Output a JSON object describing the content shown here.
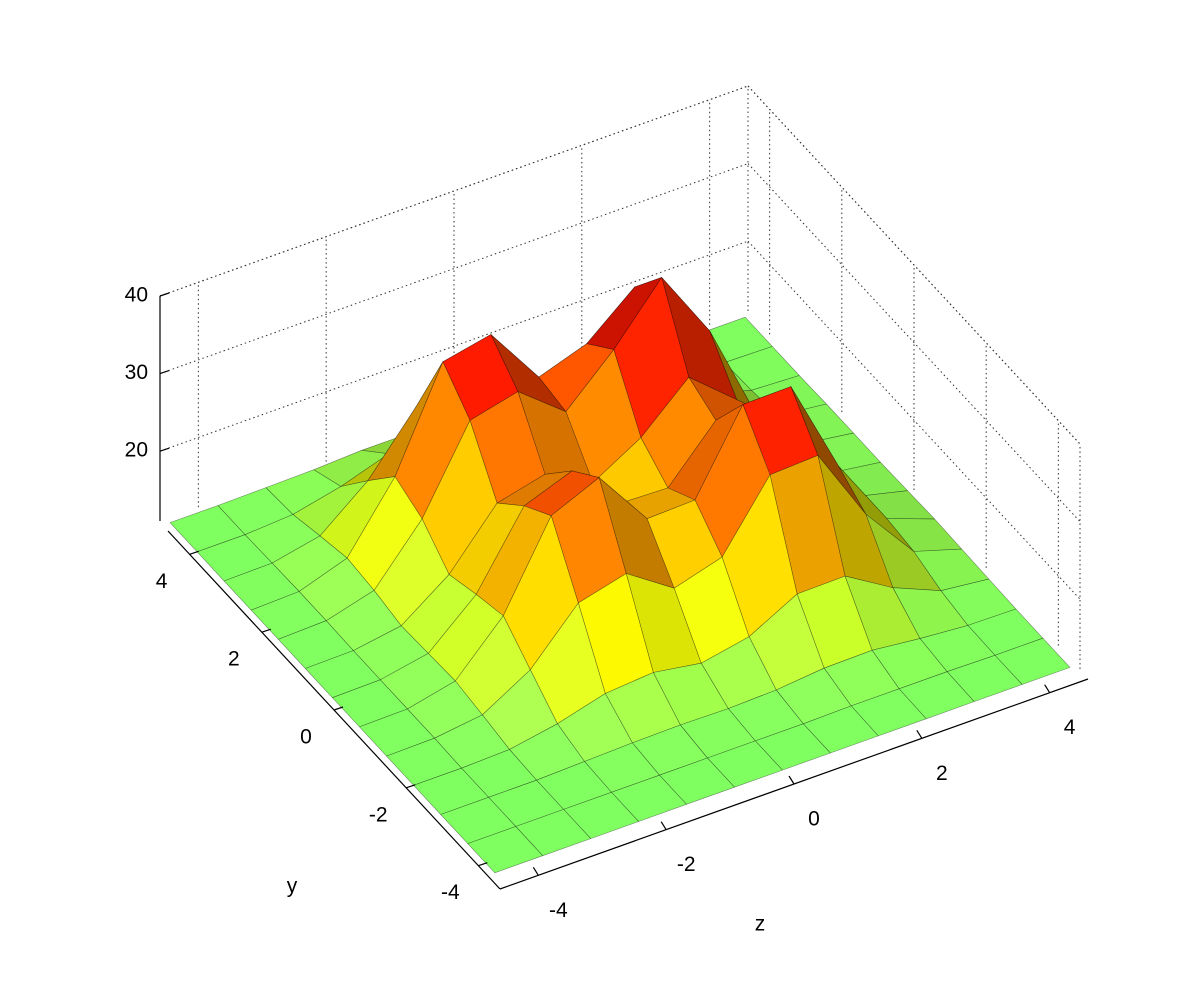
{
  "chart_data": {
    "type": "surface",
    "xlabel": "z",
    "ylabel": "y",
    "x": [
      -4.5,
      -3.75,
      -3,
      -2.25,
      -1.5,
      -0.75,
      0,
      0.75,
      1.5,
      2.25,
      3,
      3.75,
      4.5
    ],
    "y": [
      -4.5,
      -3.75,
      -3,
      -2.25,
      -1.5,
      -0.75,
      0,
      0.75,
      1.5,
      2.25,
      3,
      3.75,
      4.5
    ],
    "z": [
      [
        11,
        11,
        11,
        11,
        11,
        11,
        11,
        11,
        11,
        11,
        11,
        11,
        11
      ],
      [
        11,
        11,
        11,
        11,
        11,
        11,
        11,
        11,
        11.1,
        11.1,
        11.1,
        11,
        11
      ],
      [
        11,
        11,
        11,
        11.2,
        11.4,
        11.5,
        11.4,
        11.6,
        12.2,
        12.3,
        11.6,
        11.1,
        11
      ],
      [
        11,
        11,
        11.2,
        12.3,
        14,
        14.5,
        13.5,
        14.7,
        18,
        18.1,
        14.4,
        11.8,
        11.1
      ],
      [
        11,
        11.1,
        11.9,
        15.5,
        21.9,
        23.5,
        19.4,
        21.2,
        29.6,
        29.9,
        20.1,
        13.1,
        11.2
      ],
      [
        11,
        11.1,
        12.5,
        18.7,
        29.4,
        32.1,
        24.6,
        24.8,
        34.9,
        35,
        22.5,
        13.6,
        11.3
      ],
      [
        11,
        11.1,
        12.3,
        17.7,
        26.9,
        29.2,
        22.8,
        22.6,
        29.1,
        27.9,
        18.7,
        12.7,
        11.2
      ],
      [
        11,
        11.1,
        12.1,
        16.5,
        23.5,
        25,
        21.7,
        25.3,
        30.9,
        25.8,
        16.4,
        12,
        11.1
      ],
      [
        11,
        11.2,
        12.9,
        19.9,
        30.4,
        31.9,
        27.1,
        32.9,
        40,
        30.9,
        17.6,
        12,
        11.1
      ],
      [
        11,
        11.2,
        13.3,
        21.6,
        34.2,
        35.5,
        27.8,
        29.9,
        35,
        27.3,
        16.3,
        11.8,
        11.1
      ],
      [
        11,
        11.1,
        12.4,
        17.3,
        24.6,
        25.3,
        19.9,
        19,
        20.6,
        17.5,
        13.1,
        11.3,
        11
      ],
      [
        11,
        11,
        11.4,
        12.8,
        14.8,
        15,
        13.3,
        12.6,
        12.8,
        12.2,
        11.4,
        11.1,
        11
      ],
      [
        11,
        11,
        11.1,
        11.2,
        11.5,
        11.5,
        11.3,
        11.2,
        11.2,
        11.1,
        11,
        11,
        11
      ]
    ],
    "xlim": [
      -4.6,
      4.6
    ],
    "ylim": [
      -4.6,
      4.6
    ],
    "zlim": [
      11,
      40
    ],
    "xticks": [
      -4,
      -2,
      0,
      2,
      4
    ],
    "yticks": [
      -4,
      -2,
      0,
      2,
      4
    ],
    "zticks": [
      20,
      30,
      40
    ],
    "grid": true,
    "colormap": [
      "#80ff60",
      "#ffff00",
      "#ff9900",
      "#ff1a00",
      "#800000"
    ]
  }
}
